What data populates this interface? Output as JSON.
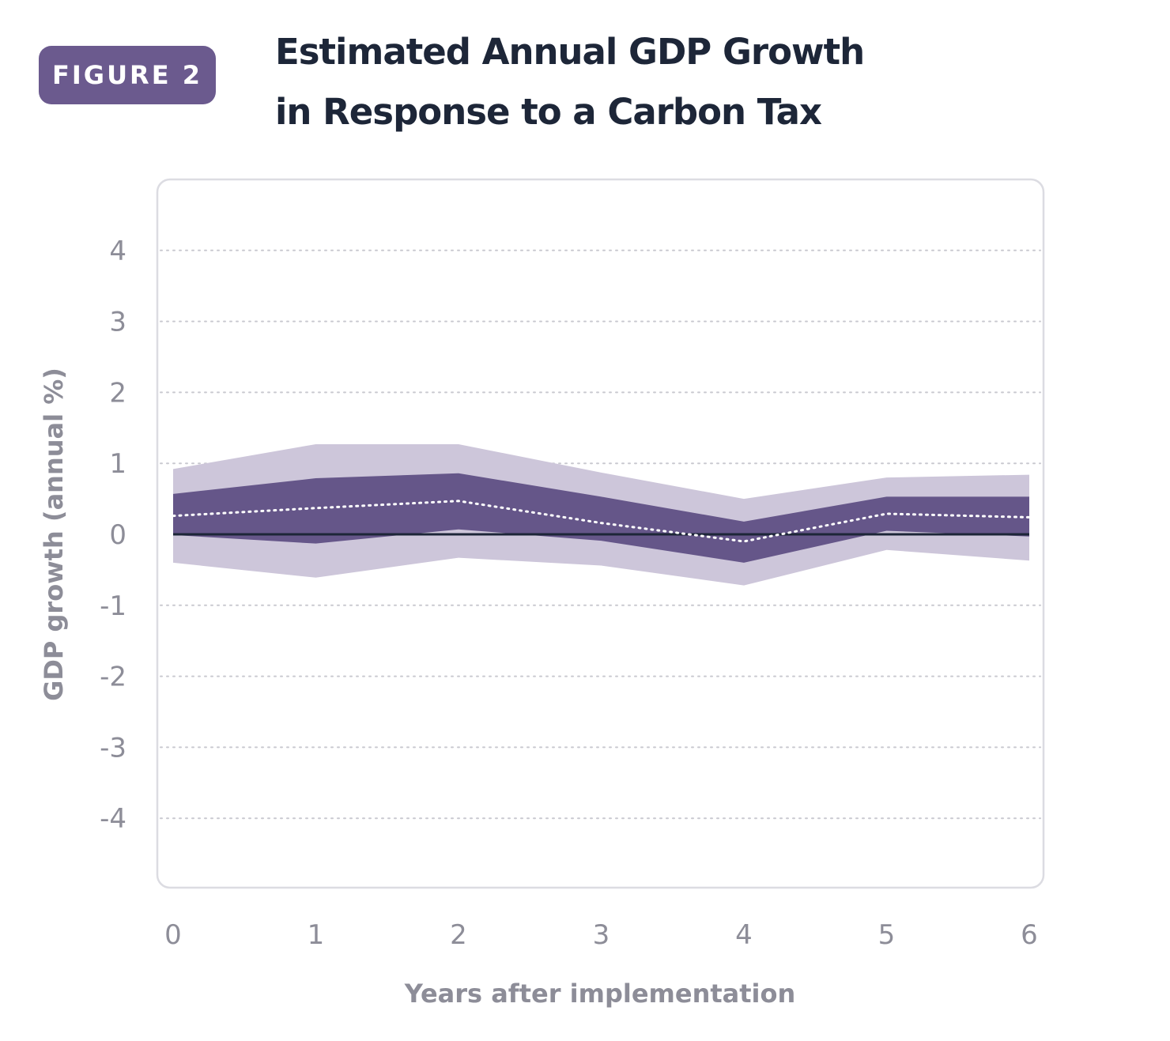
{
  "figure": {
    "badge": "FIGURE 2",
    "title_line1": "Estimated Annual GDP Growth",
    "title_line2": "in Response to a Carbon Tax"
  },
  "colors": {
    "badge": "#6b5a8e",
    "outer_band": "#cdc6da",
    "inner_band": "#655689",
    "median": "#ffffff",
    "zero_line": "#1d2638",
    "grid": "#c9c9d0",
    "text": "#8d8d98",
    "title": "#1d2638"
  },
  "chart_data": {
    "type": "area",
    "title": "Estimated Annual GDP Growth in Response to a Carbon Tax",
    "xlabel": "Years after implementation",
    "ylabel": "GDP growth (annual %)",
    "x": [
      0,
      1,
      2,
      3,
      4,
      5,
      6
    ],
    "xticks": [
      "0",
      "1",
      "2",
      "3",
      "4",
      "5",
      "6"
    ],
    "yticks": [
      "4",
      "3",
      "2",
      "1",
      "0",
      "-1",
      "-2",
      "-3",
      "-4"
    ],
    "ylim": [
      -5,
      4.7
    ],
    "xlim": [
      0,
      6
    ],
    "grid": "horizontal dotted",
    "legend": "none",
    "series": [
      {
        "role": "outer-band-upper",
        "values": [
          0.92,
          1.27,
          1.27,
          0.87,
          0.5,
          0.8,
          0.84
        ]
      },
      {
        "role": "outer-band-lower",
        "values": [
          -0.4,
          -0.61,
          -0.33,
          -0.44,
          -0.72,
          -0.22,
          -0.37
        ]
      },
      {
        "role": "inner-band-upper",
        "values": [
          0.57,
          0.79,
          0.86,
          0.53,
          0.18,
          0.53,
          0.53
        ]
      },
      {
        "role": "inner-band-lower",
        "values": [
          -0.01,
          -0.13,
          0.07,
          -0.09,
          -0.4,
          0.05,
          -0.03
        ]
      },
      {
        "role": "median",
        "values": [
          0.26,
          0.37,
          0.47,
          0.16,
          -0.1,
          0.29,
          0.24
        ]
      }
    ],
    "reference_line": 0
  }
}
